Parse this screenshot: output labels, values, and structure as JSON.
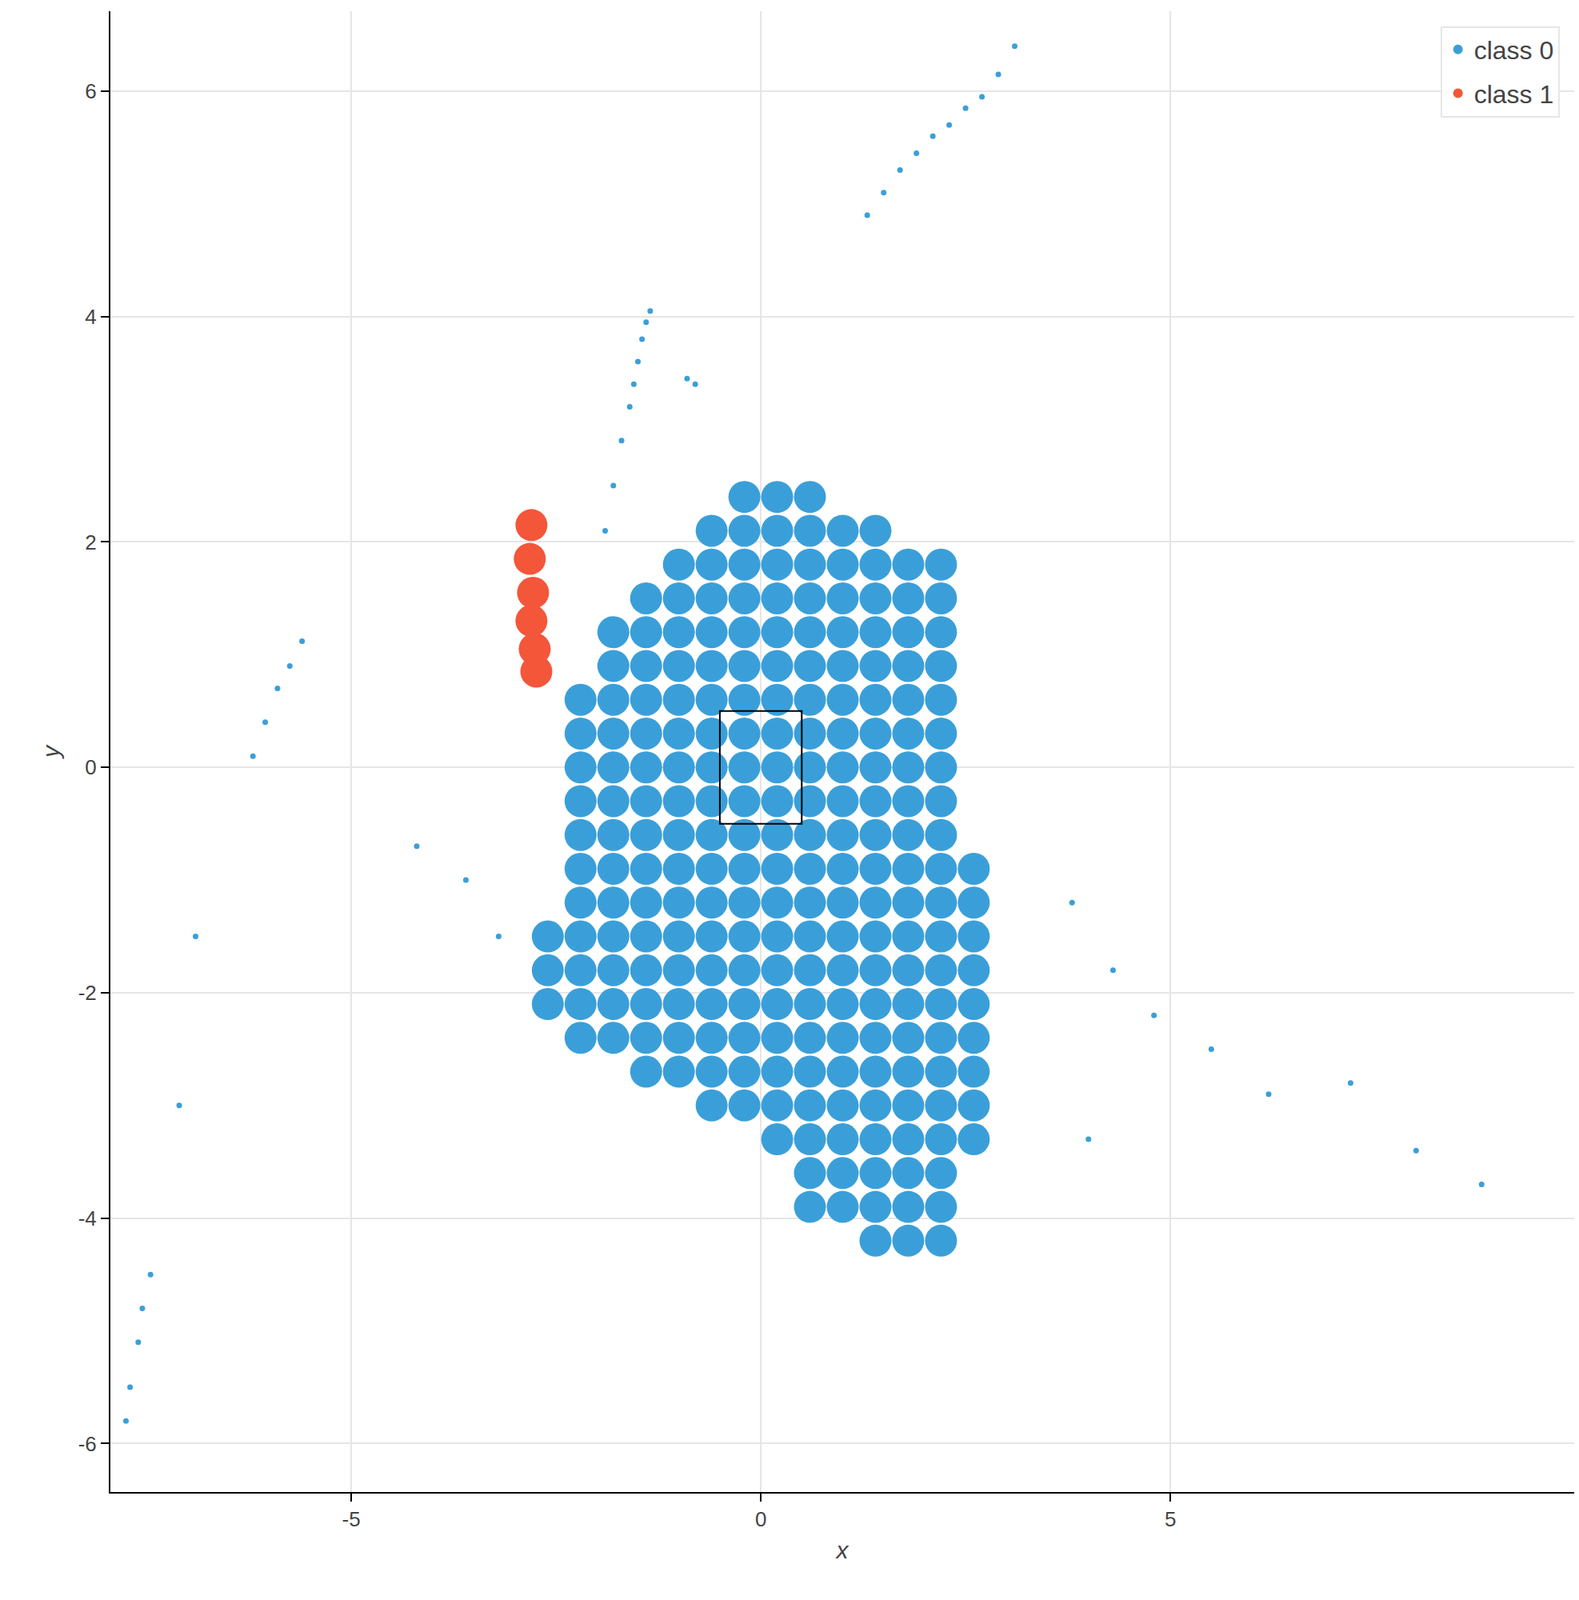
{
  "chart_data": {
    "type": "scatter",
    "x_label": "x",
    "y_label": "y",
    "xlim": [
      -7.94,
      9.93
    ],
    "ylim": [
      -6.43,
      6.71
    ],
    "xticks": [
      -5,
      0,
      5
    ],
    "yticks": [
      -6,
      -4,
      -2,
      0,
      2,
      4,
      6
    ],
    "grid": true,
    "legend": "top right",
    "box": {
      "x": [
        -0.5,
        0.5
      ],
      "y": [
        -0.5,
        0.5
      ]
    },
    "series": [
      {
        "name": "class 0",
        "color": "#3a9fd9",
        "marker": "circle",
        "x": [
          -0.2,
          0.2,
          0.6,
          -0.6,
          -0.2,
          0.2,
          0.6,
          1,
          1.4,
          -1,
          -0.6,
          -0.2,
          0.2,
          0.6,
          1,
          1.4,
          1.8,
          2.2,
          -1.4,
          -1,
          -0.6,
          -0.2,
          0.2,
          0.6,
          1,
          1.4,
          1.8,
          2.2,
          -1.8,
          -1.4,
          -1,
          -0.6,
          -0.2,
          0.2,
          0.6,
          1,
          1.4,
          1.8,
          2.2,
          -1.8,
          -1.4,
          -1,
          -0.6,
          -0.2,
          0.2,
          0.6,
          1,
          1.4,
          1.8,
          2.2,
          -2.2,
          -1.8,
          -1.4,
          -1,
          -0.6,
          -0.2,
          0.2,
          0.6,
          1,
          1.4,
          1.8,
          2.2,
          -2.2,
          -1.8,
          -1.4,
          -1,
          -0.6,
          -0.2,
          0.2,
          0.6,
          1,
          1.4,
          1.8,
          2.2,
          -2.2,
          -1.8,
          -1.4,
          -1,
          -0.6,
          -0.2,
          0.2,
          0.6,
          1,
          1.4,
          1.8,
          2.2,
          -2.2,
          -1.8,
          -1.4,
          -1,
          -0.6,
          -0.2,
          0.2,
          0.6,
          1,
          1.4,
          1.8,
          2.2,
          -2.2,
          -1.8,
          -1.4,
          -1,
          -0.6,
          -0.2,
          0.2,
          0.6,
          1,
          1.4,
          1.8,
          2.2,
          -2.2,
          -1.8,
          -1.4,
          -1,
          -0.6,
          -0.2,
          0.2,
          0.6,
          1,
          1.4,
          1.8,
          2.2,
          2.6,
          -2.2,
          -1.8,
          -1.4,
          -1,
          -0.6,
          -0.2,
          0.2,
          0.6,
          1,
          1.4,
          1.8,
          2.2,
          2.6,
          -2.6,
          -2.2,
          -1.8,
          -1.4,
          -1,
          -0.6,
          -0.2,
          0.2,
          0.6,
          1,
          1.4,
          1.8,
          2.2,
          2.6,
          -2.6,
          -2.2,
          -1.8,
          -1.4,
          -1,
          -0.6,
          -0.2,
          0.2,
          0.6,
          1,
          1.4,
          1.8,
          2.2,
          2.6,
          -2.6,
          -2.2,
          -1.8,
          -1.4,
          -1,
          -0.6,
          -0.2,
          0.2,
          0.6,
          1,
          1.4,
          1.8,
          2.2,
          2.6,
          -2.2,
          -1.8,
          -1.4,
          -1,
          -0.6,
          -0.2,
          0.2,
          0.6,
          1,
          1.4,
          1.8,
          2.2,
          2.6,
          -1.4,
          -1,
          -0.6,
          -0.2,
          0.2,
          0.6,
          1,
          1.4,
          1.8,
          2.2,
          2.6,
          -0.6,
          -0.2,
          0.2,
          0.6,
          1,
          1.4,
          1.8,
          2.2,
          2.6,
          0.2,
          0.6,
          1,
          1.4,
          1.8,
          2.2,
          2.6,
          0.6,
          1,
          1.4,
          1.8,
          2.2,
          0.6,
          1,
          1.4,
          1.8,
          2.2,
          1.4,
          1.8,
          2.2
        ],
        "y": [
          2.4,
          2.4,
          2.4,
          2.1,
          2.1,
          2.1,
          2.1,
          2.1,
          2.1,
          1.8,
          1.8,
          1.8,
          1.8,
          1.8,
          1.8,
          1.8,
          1.8,
          1.8,
          1.5,
          1.5,
          1.5,
          1.5,
          1.5,
          1.5,
          1.5,
          1.5,
          1.5,
          1.5,
          1.2,
          1.2,
          1.2,
          1.2,
          1.2,
          1.2,
          1.2,
          1.2,
          1.2,
          1.2,
          1.2,
          0.9,
          0.9,
          0.9,
          0.9,
          0.9,
          0.9,
          0.9,
          0.9,
          0.9,
          0.9,
          0.9,
          0.6,
          0.6,
          0.6,
          0.6,
          0.6,
          0.6,
          0.6,
          0.6,
          0.6,
          0.6,
          0.6,
          0.6,
          0.3,
          0.3,
          0.3,
          0.3,
          0.3,
          0.3,
          0.3,
          0.3,
          0.3,
          0.3,
          0.3,
          0.3,
          0,
          0,
          0,
          0,
          0,
          0,
          0,
          0,
          0,
          0,
          0,
          0,
          -0.3,
          -0.3,
          -0.3,
          -0.3,
          -0.3,
          -0.3,
          -0.3,
          -0.3,
          -0.3,
          -0.3,
          -0.3,
          -0.3,
          -0.6,
          -0.6,
          -0.6,
          -0.6,
          -0.6,
          -0.6,
          -0.6,
          -0.6,
          -0.6,
          -0.6,
          -0.6,
          -0.6,
          -0.9,
          -0.9,
          -0.9,
          -0.9,
          -0.9,
          -0.9,
          -0.9,
          -0.9,
          -0.9,
          -0.9,
          -0.9,
          -0.9,
          -0.9,
          -1.2,
          -1.2,
          -1.2,
          -1.2,
          -1.2,
          -1.2,
          -1.2,
          -1.2,
          -1.2,
          -1.2,
          -1.2,
          -1.2,
          -1.2,
          -1.5,
          -1.5,
          -1.5,
          -1.5,
          -1.5,
          -1.5,
          -1.5,
          -1.5,
          -1.5,
          -1.5,
          -1.5,
          -1.5,
          -1.5,
          -1.5,
          -1.8,
          -1.8,
          -1.8,
          -1.8,
          -1.8,
          -1.8,
          -1.8,
          -1.8,
          -1.8,
          -1.8,
          -1.8,
          -1.8,
          -1.8,
          -1.8,
          -2.1,
          -2.1,
          -2.1,
          -2.1,
          -2.1,
          -2.1,
          -2.1,
          -2.1,
          -2.1,
          -2.1,
          -2.1,
          -2.1,
          -2.1,
          -2.1,
          -2.4,
          -2.4,
          -2.4,
          -2.4,
          -2.4,
          -2.4,
          -2.4,
          -2.4,
          -2.4,
          -2.4,
          -2.4,
          -2.4,
          -2.4,
          -2.7,
          -2.7,
          -2.7,
          -2.7,
          -2.7,
          -2.7,
          -2.7,
          -2.7,
          -2.7,
          -2.7,
          -2.7,
          -3,
          -3,
          -3,
          -3,
          -3,
          -3,
          -3,
          -3,
          -3,
          -3.3,
          -3.3,
          -3.3,
          -3.3,
          -3.3,
          -3.3,
          -3.3,
          -3.6,
          -3.6,
          -3.6,
          -3.6,
          -3.6,
          -3.9,
          -3.9,
          -3.9,
          -3.9,
          -3.9,
          -4.2,
          -4.2,
          -4.2
        ]
      },
      {
        "name": "class 0",
        "color": "#3a9fd9",
        "marker": "dot",
        "x": [
          1.3,
          1.5,
          1.7,
          1.9,
          2.1,
          2.3,
          2.5,
          2.7,
          2.9,
          3.1,
          -1.9,
          -1.8,
          -1.7,
          -1.6,
          -1.55,
          -1.5,
          -1.45,
          -1.4,
          -1.35,
          -0.9,
          -0.8,
          -5.6,
          -5.75,
          -5.9,
          -6.05,
          -6.2,
          -7.45,
          -7.55,
          -7.6,
          -7.7,
          -7.75,
          3.8,
          4.3,
          4.8,
          5.5,
          6.2,
          7.2,
          8.0,
          8.8,
          4.0,
          -3.2,
          -3.6,
          -4.2,
          -6.9,
          -7.1
        ],
        "y": [
          4.9,
          5.1,
          5.3,
          5.45,
          5.6,
          5.7,
          5.85,
          5.95,
          6.15,
          6.4,
          2.1,
          2.5,
          2.9,
          3.2,
          3.4,
          3.6,
          3.8,
          3.95,
          4.05,
          3.45,
          3.4,
          1.12,
          0.9,
          0.7,
          0.4,
          0.1,
          -4.5,
          -4.8,
          -5.1,
          -5.5,
          -5.8,
          -1.2,
          -1.8,
          -2.2,
          -2.5,
          -2.9,
          -2.8,
          -3.4,
          -3.7,
          -3.3,
          -1.5,
          -1.0,
          -0.7,
          -1.5,
          -3.0
        ]
      },
      {
        "name": "class 1",
        "color": "#f4563a",
        "marker": "circle",
        "x": [
          -2.8,
          -2.82,
          -2.78,
          -2.8,
          -2.76,
          -2.74
        ],
        "y": [
          2.15,
          1.85,
          1.55,
          1.3,
          1.05,
          0.85
        ]
      }
    ]
  }
}
